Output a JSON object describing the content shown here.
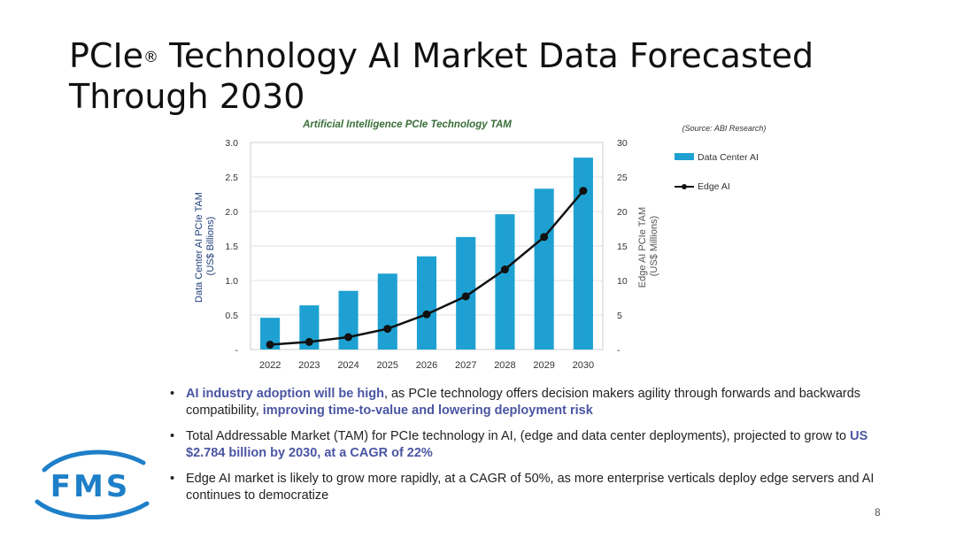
{
  "slide": {
    "title_prefix": "PCIe",
    "title_mark": "®",
    "title_rest": " Technology AI Market Data Forecasted Through 2030",
    "page_number": "8"
  },
  "chart_data": {
    "type": "bar",
    "title": "Artificial Intelligence PCIe Technology TAM",
    "source": "(Source: ABI Research)",
    "categories": [
      "2022",
      "2023",
      "2024",
      "2025",
      "2026",
      "2027",
      "2028",
      "2029",
      "2030"
    ],
    "ylabel_left": [
      "Data Center AI PCIe TAM",
      "(US$ Billions)"
    ],
    "ylabel_right": [
      "Edge AI PCIe TAM",
      "(US$ Millions)"
    ],
    "ylim_left": [
      0,
      3.0
    ],
    "ylim_right": [
      0,
      30
    ],
    "yticks_left": [
      "-",
      "0.5",
      "1.0",
      "1.5",
      "2.0",
      "2.5",
      "3.0"
    ],
    "yticks_right": [
      "-",
      "5",
      "10",
      "15",
      "20",
      "25",
      "30"
    ],
    "grid": true,
    "legend_position": "right",
    "series": [
      {
        "name": "Data Center AI",
        "type": "bar",
        "axis": "left",
        "color": "#1ea1d2",
        "values": [
          0.46,
          0.64,
          0.85,
          1.1,
          1.35,
          1.63,
          1.96,
          2.33,
          2.78
        ]
      },
      {
        "name": "Edge AI",
        "type": "line",
        "axis": "right",
        "color": "#111111",
        "values": [
          0.7,
          1.1,
          1.8,
          3.0,
          5.1,
          7.7,
          11.6,
          16.3,
          23.0
        ]
      }
    ]
  },
  "bullets": [
    {
      "hl1": "AI industry adoption will be high",
      "t1": ", as PCIe technology offers decision makers agility through forwards and backwards compatibility, ",
      "hl2": "improving time-to-value and lowering deployment risk"
    },
    {
      "t1": "Total Addressable Market (TAM) for PCIe technology in AI, (edge and data center deployments), projected to grow to ",
      "hl1": "US $2.784 billion by 2030, at a CAGR of 22%"
    },
    {
      "t1": "Edge AI market is likely to grow more rapidly, at a CAGR of 50%, as more enterprise verticals deploy edge servers and AI continues to democratize"
    }
  ],
  "logo": {
    "text": "FMS",
    "color": "#1e7fc8"
  }
}
